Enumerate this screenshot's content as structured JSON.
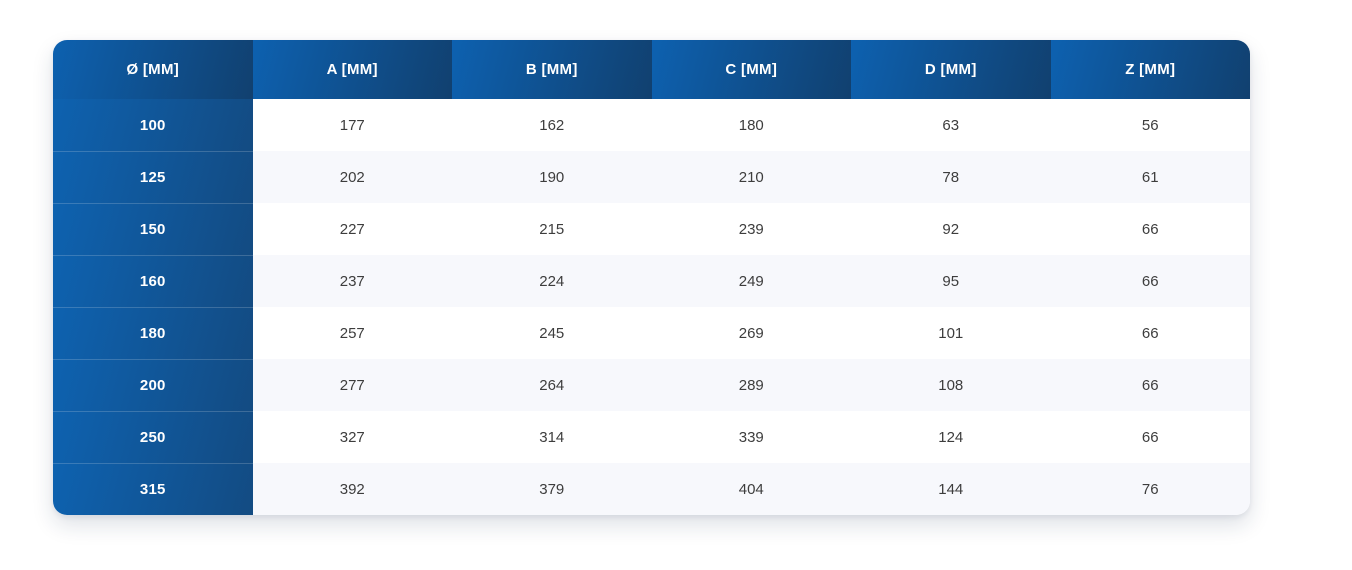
{
  "table": {
    "columns": [
      {
        "label": "Ø [MM]"
      },
      {
        "label": "A [MM]"
      },
      {
        "label": "B [MM]"
      },
      {
        "label": "C [MM]"
      },
      {
        "label": "D [MM]"
      },
      {
        "label": "Z [MM]"
      }
    ],
    "rows": [
      {
        "diameter": "100",
        "values": [
          "177",
          "162",
          "180",
          "63",
          "56"
        ]
      },
      {
        "diameter": "125",
        "values": [
          "202",
          "190",
          "210",
          "78",
          "61"
        ]
      },
      {
        "diameter": "150",
        "values": [
          "227",
          "215",
          "239",
          "92",
          "66"
        ]
      },
      {
        "diameter": "160",
        "values": [
          "237",
          "224",
          "249",
          "95",
          "66"
        ]
      },
      {
        "diameter": "180",
        "values": [
          "257",
          "245",
          "269",
          "101",
          "66"
        ]
      },
      {
        "diameter": "200",
        "values": [
          "277",
          "264",
          "289",
          "108",
          "66"
        ]
      },
      {
        "diameter": "250",
        "values": [
          "327",
          "314",
          "339",
          "124",
          "66"
        ]
      },
      {
        "diameter": "315",
        "values": [
          "392",
          "379",
          "404",
          "144",
          "76"
        ]
      }
    ]
  },
  "colors": {
    "header_gradient_start": "#0d61b0",
    "header_gradient_end": "#11406f",
    "row_header_gradient_start": "#0e62b0",
    "row_header_gradient_end": "#134b82",
    "row_stripe": "#f7f8fc",
    "cell_text": "#3d3d3d"
  }
}
